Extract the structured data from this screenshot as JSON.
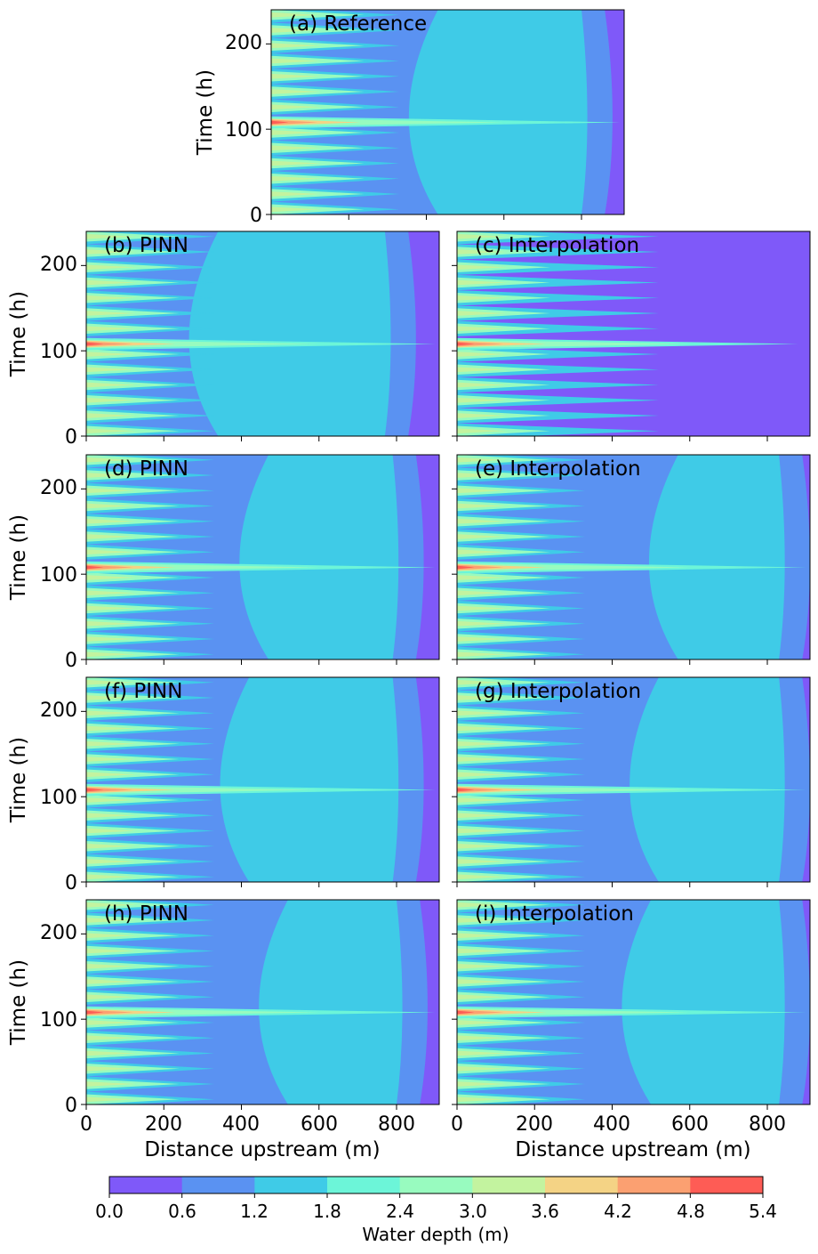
{
  "colors": {
    "levels": [
      "#7f59f9",
      "#5a92f2",
      "#3fcbe7",
      "#6cf5d8",
      "#98fbbf",
      "#c3f39f",
      "#f4d385",
      "#fba071",
      "#fe5c55"
    ],
    "axis": "#000000"
  },
  "chart_data": {
    "type": "contour",
    "xlabel": "Distance upstream (m)",
    "ylabel": "Time (h)",
    "xlim": [
      0,
      910
    ],
    "ylim": [
      0,
      240
    ],
    "xticks": [
      "0",
      "200",
      "400",
      "600",
      "800"
    ],
    "yticks": [
      "0",
      "100",
      "200"
    ],
    "colorbar": {
      "label": "Water depth (m)",
      "levels": [
        0.0,
        0.6,
        1.2,
        1.8,
        2.4,
        3.0,
        3.6,
        4.2,
        4.8,
        5.4
      ],
      "tick_labels": [
        "0.0",
        "0.6",
        "1.2",
        "1.8",
        "2.4",
        "3.0",
        "3.6",
        "4.2",
        "4.8",
        "5.4"
      ]
    },
    "pulse_peak_time_h": 108,
    "panels": [
      {
        "id": "a",
        "title": "(a) Reference",
        "kind": "reference",
        "dome_front_m": 340,
        "dome_back_m": 800
      },
      {
        "id": "b",
        "title": "(b) PINN",
        "kind": "pinn",
        "dome_front_m": 250,
        "dome_back_m": 770
      },
      {
        "id": "c",
        "title": "(c) Interpolation",
        "kind": "interp-flat",
        "dome_front_m": 0,
        "dome_back_m": 0
      },
      {
        "id": "d",
        "title": "(d) PINN",
        "kind": "pinn",
        "dome_front_m": 380,
        "dome_back_m": 790
      },
      {
        "id": "e",
        "title": "(e) Interpolation",
        "kind": "interp-dome",
        "dome_front_m": 480,
        "dome_back_m": 830
      },
      {
        "id": "f",
        "title": "(f) PINN",
        "kind": "pinn",
        "dome_front_m": 330,
        "dome_back_m": 790
      },
      {
        "id": "g",
        "title": "(g) Interpolation",
        "kind": "interp-dome",
        "dome_front_m": 430,
        "dome_back_m": 830
      },
      {
        "id": "h",
        "title": "(h) PINN",
        "kind": "pinn",
        "dome_front_m": 430,
        "dome_back_m": 800
      },
      {
        "id": "i",
        "title": "(i) Interpolation",
        "kind": "interp-dome",
        "dome_front_m": 410,
        "dome_back_m": 830
      }
    ]
  }
}
